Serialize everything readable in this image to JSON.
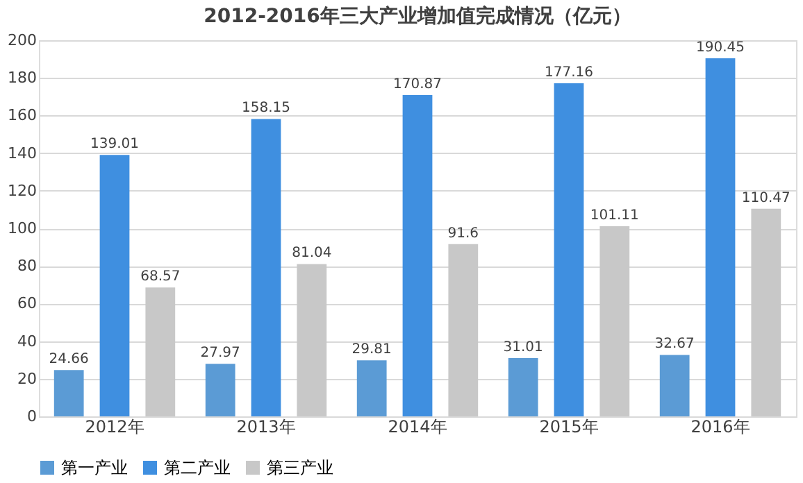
{
  "chart_data": {
    "type": "bar",
    "title": "2012-2016年三大产业增加值完成情况（亿元）",
    "categories": [
      "2012年",
      "2013年",
      "2014年",
      "2015年",
      "2016年"
    ],
    "series": [
      {
        "name": "第一产业",
        "color": "#5b9bd5",
        "values": [
          24.66,
          27.97,
          29.81,
          31.01,
          32.67
        ]
      },
      {
        "name": "第二产业",
        "color": "#3f8fe0",
        "values": [
          139.01,
          158.15,
          170.87,
          177.16,
          190.45
        ]
      },
      {
        "name": "第三产业",
        "color": "#c8c8c8",
        "values": [
          68.57,
          81.04,
          91.6,
          101.11,
          110.47
        ]
      }
    ],
    "ylim": [
      0,
      200
    ],
    "yticks": [
      0,
      20,
      40,
      60,
      80,
      100,
      120,
      140,
      160,
      180,
      200
    ],
    "grid": "y",
    "legend": "bottom",
    "data_labels": true
  }
}
